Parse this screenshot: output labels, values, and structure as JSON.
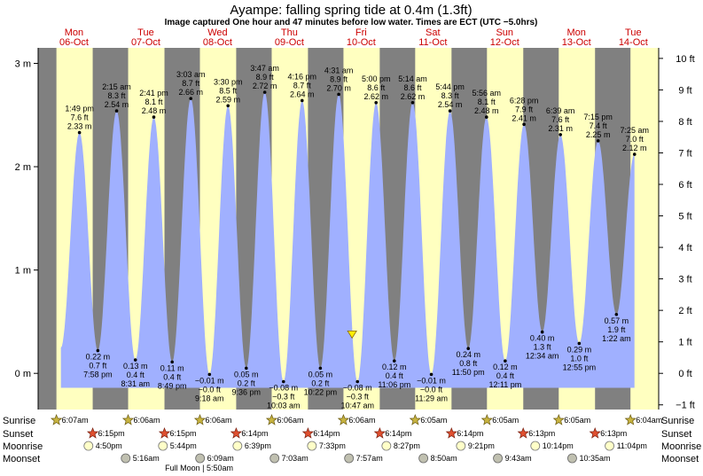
{
  "header": {
    "title": "Ayampe: falling  spring tide at 0.4m (1.3ft)",
    "subtitle": "Image captured One hour and 47 minutes before low water. Times are ECT (UTC −5.0hrs)"
  },
  "chart_data": {
    "type": "area",
    "x_unit": "hours from Mon 06-Oct 00:00",
    "x_range": [
      0,
      207.5
    ],
    "y_left": {
      "range": [
        -0.35,
        3.15
      ],
      "ticks": [
        0,
        1,
        2,
        3
      ],
      "tick_labels": [
        "0 m",
        "1 m",
        "2 m",
        "3 m"
      ]
    },
    "y_right": {
      "ticks_ft": [
        -1,
        0,
        1,
        2,
        3,
        4,
        5,
        6,
        7,
        8,
        9,
        10
      ],
      "tick_labels": [
        "−1 ft",
        "0 ft",
        "1 ft",
        "2 ft",
        "3 ft",
        "4 ft",
        "5 ft",
        "6 ft",
        "7 ft",
        "8 ft",
        "9 ft",
        "10 ft"
      ]
    },
    "colors": {
      "day": "#ffffc0",
      "night": "#808080",
      "tide": "#a0b0ff",
      "text_day": "#cc0000"
    },
    "days": [
      {
        "dow": "Mon",
        "date": "06-Oct"
      },
      {
        "dow": "Tue",
        "date": "07-Oct"
      },
      {
        "dow": "Wed",
        "date": "08-Oct"
      },
      {
        "dow": "Thu",
        "date": "09-Oct"
      },
      {
        "dow": "Fri",
        "date": "10-Oct"
      },
      {
        "dow": "Sat",
        "date": "11-Oct"
      },
      {
        "dow": "Sun",
        "date": "12-Oct"
      },
      {
        "dow": "Mon",
        "date": "13-Oct"
      },
      {
        "dow": "Tue",
        "date": "14-Oct"
      }
    ],
    "tides": [
      {
        "hour": 13.82,
        "m": 2.33,
        "type": "high",
        "time": "1:49 pm",
        "ft": "7.6 ft",
        "m_label": "2.33 m"
      },
      {
        "hour": 19.97,
        "m": 0.22,
        "type": "low",
        "time": "7:58 pm",
        "ft": "0.7 ft",
        "m_label": "0.22 m"
      },
      {
        "hour": 26.25,
        "m": 2.54,
        "type": "high",
        "time": "2:15 am",
        "ft": "8.3 ft",
        "m_label": "2.54 m"
      },
      {
        "hour": 32.52,
        "m": 0.13,
        "type": "low",
        "time": "8:31 am",
        "ft": "0.4 ft",
        "m_label": "0.13 m"
      },
      {
        "hour": 38.68,
        "m": 2.48,
        "type": "high",
        "time": "2:41 pm",
        "ft": "8.1 ft",
        "m_label": "2.48 m"
      },
      {
        "hour": 44.82,
        "m": 0.11,
        "type": "low",
        "time": "8:49 pm",
        "ft": "0.4 ft",
        "m_label": "0.11 m"
      },
      {
        "hour": 51.05,
        "m": 2.66,
        "type": "high",
        "time": "3:03 am",
        "ft": "8.7 ft",
        "m_label": "2.66 m"
      },
      {
        "hour": 57.3,
        "m": -0.01,
        "type": "low",
        "time": "9:18 am",
        "ft": "−0.0 ft",
        "m_label": "−0.01 m"
      },
      {
        "hour": 63.5,
        "m": 2.59,
        "type": "high",
        "time": "3:30 pm",
        "ft": "8.5 ft",
        "m_label": "2.59 m"
      },
      {
        "hour": 69.6,
        "m": 0.05,
        "type": "low",
        "time": "9:36 pm",
        "ft": "0.2 ft",
        "m_label": "0.05 m"
      },
      {
        "hour": 75.78,
        "m": 2.72,
        "type": "high",
        "time": "3:47 am",
        "ft": "8.9 ft",
        "m_label": "2.72 m"
      },
      {
        "hour": 82.05,
        "m": -0.08,
        "type": "low",
        "time": "10:03 am",
        "ft": "−0.3 ft",
        "m_label": "−0.08 m"
      },
      {
        "hour": 88.27,
        "m": 2.64,
        "type": "high",
        "time": "4:16 pm",
        "ft": "8.7 ft",
        "m_label": "2.64 m"
      },
      {
        "hour": 94.37,
        "m": 0.05,
        "type": "low",
        "time": "10:22 pm",
        "ft": "0.2 ft",
        "m_label": "0.05 m"
      },
      {
        "hour": 100.52,
        "m": 2.7,
        "type": "high",
        "time": "4:31 am",
        "ft": "8.9 ft",
        "m_label": "2.70 m"
      },
      {
        "hour": 106.78,
        "m": -0.08,
        "type": "low",
        "time": "10:47 am",
        "ft": "−0.3 ft",
        "m_label": "−0.08 m"
      },
      {
        "hour": 113.0,
        "m": 2.62,
        "type": "high",
        "time": "5:00 pm",
        "ft": "8.6 ft",
        "m_label": "2.62 m"
      },
      {
        "hour": 119.1,
        "m": 0.12,
        "type": "low",
        "time": "11:06 pm",
        "ft": "0.4 ft",
        "m_label": "0.12 m"
      },
      {
        "hour": 125.23,
        "m": 2.62,
        "type": "high",
        "time": "5:14 am",
        "ft": "8.6 ft",
        "m_label": "2.62 m"
      },
      {
        "hour": 131.48,
        "m": -0.01,
        "type": "low",
        "time": "11:29 am",
        "ft": "−0.0 ft",
        "m_label": "−0.01 m"
      },
      {
        "hour": 137.73,
        "m": 2.54,
        "type": "high",
        "time": "5:44 pm",
        "ft": "8.3 ft",
        "m_label": "2.54 m"
      },
      {
        "hour": 143.83,
        "m": 0.24,
        "type": "low",
        "time": "11:50 pm",
        "ft": "0.8 ft",
        "m_label": "0.24 m"
      },
      {
        "hour": 149.93,
        "m": 2.48,
        "type": "high",
        "time": "5:56 am",
        "ft": "8.1 ft",
        "m_label": "2.48 m"
      },
      {
        "hour": 156.18,
        "m": 0.12,
        "type": "low",
        "time": "12:11 pm",
        "ft": "0.4 ft",
        "m_label": "0.12 m"
      },
      {
        "hour": 162.47,
        "m": 2.41,
        "type": "high",
        "time": "6:28 pm",
        "ft": "7.9 ft",
        "m_label": "2.41 m"
      },
      {
        "hour": 168.57,
        "m": 0.4,
        "type": "low",
        "time": "12:34 am",
        "ft": "1.3 ft",
        "m_label": "0.40 m"
      },
      {
        "hour": 174.65,
        "m": 2.31,
        "type": "high",
        "time": "6:39 am",
        "ft": "7.6 ft",
        "m_label": "2.31 m"
      },
      {
        "hour": 180.92,
        "m": 0.29,
        "type": "low",
        "time": "12:55 pm",
        "ft": "1.0 ft",
        "m_label": "0.29 m"
      },
      {
        "hour": 187.25,
        "m": 2.25,
        "type": "high",
        "time": "7:15 pm",
        "ft": "7.4 ft",
        "m_label": "2.25 m"
      },
      {
        "hour": 193.37,
        "m": 0.57,
        "type": "low",
        "time": "1:22 am",
        "ft": "1.9 ft",
        "m_label": "0.57 m"
      },
      {
        "hour": 199.42,
        "m": 2.12,
        "type": "high",
        "time": "7:25 am",
        "ft": "7.0 ft",
        "m_label": "2.12 m"
      }
    ],
    "current": {
      "hour": 104.98,
      "m": 0.4
    }
  },
  "sun_moon": {
    "row_labels": {
      "sunrise": "Sunrise",
      "sunset": "Sunset",
      "moonrise": "Moonrise",
      "moonset": "Moonset"
    },
    "sunrise": [
      {
        "hour": 6.12,
        "time": "6:07am"
      },
      {
        "hour": 30.1,
        "time": "6:06am"
      },
      {
        "hour": 54.1,
        "time": "6:06am"
      },
      {
        "hour": 78.1,
        "time": "6:06am"
      },
      {
        "hour": 102.1,
        "time": "6:06am"
      },
      {
        "hour": 126.08,
        "time": "6:05am"
      },
      {
        "hour": 150.08,
        "time": "6:05am"
      },
      {
        "hour": 174.08,
        "time": "6:05am"
      },
      {
        "hour": 198.07,
        "time": "6:04am"
      }
    ],
    "sunset": [
      {
        "hour": 18.25,
        "time": "6:15pm"
      },
      {
        "hour": 42.25,
        "time": "6:15pm"
      },
      {
        "hour": 66.23,
        "time": "6:14pm"
      },
      {
        "hour": 90.23,
        "time": "6:14pm"
      },
      {
        "hour": 114.23,
        "time": "6:14pm"
      },
      {
        "hour": 138.23,
        "time": "6:14pm"
      },
      {
        "hour": 162.22,
        "time": "6:13pm"
      },
      {
        "hour": 186.22,
        "time": "6:13pm"
      }
    ],
    "moonrise": [
      {
        "hour": 16.83,
        "time": "4:50pm"
      },
      {
        "hour": 41.73,
        "time": "5:44pm"
      },
      {
        "hour": 66.65,
        "time": "6:39pm"
      },
      {
        "hour": 91.55,
        "time": "7:33pm"
      },
      {
        "hour": 116.45,
        "time": "8:27pm"
      },
      {
        "hour": 141.35,
        "time": "9:21pm"
      },
      {
        "hour": 166.23,
        "time": "10:14pm"
      },
      {
        "hour": 191.07,
        "time": "11:04pm"
      }
    ],
    "moonset": [
      {
        "hour": 29.27,
        "time": "5:16am"
      },
      {
        "hour": 54.15,
        "time": "6:09am"
      },
      {
        "hour": 79.05,
        "time": "7:03am"
      },
      {
        "hour": 103.95,
        "time": "7:57am"
      },
      {
        "hour": 128.83,
        "time": "8:50am"
      },
      {
        "hour": 153.72,
        "time": "9:43am"
      },
      {
        "hour": 178.58,
        "time": "10:35am"
      }
    ],
    "full_moon": {
      "hour": 53.83,
      "label": "Full Moon | 5:50am"
    }
  }
}
